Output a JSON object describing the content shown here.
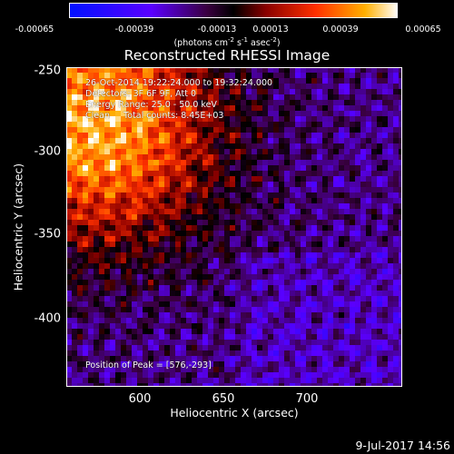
{
  "title": "Reconstructed RHESSI Image",
  "colorbar": {
    "ticks": [
      "-0.00065",
      "-0.00039",
      "-0.00013",
      "0.00013",
      "0.00039",
      "0.00065"
    ],
    "unit_parts": [
      "(photons cm",
      "-2",
      " s",
      "-1",
      " asec",
      "-2",
      ")"
    ]
  },
  "annotations": {
    "time": "26-Oct-2014 19:22:24.000 to 19:32:24.000",
    "detectors": "Detectors: 3F 6F 9F, Att 0",
    "energy": "Energy Range: 25.0 - 50.0 keV",
    "counts": "Clean     Total counts: 8.45E+03",
    "peak": "Position of Peak = [576,-293]"
  },
  "date_stamp": "9-Jul-2017 14:56",
  "chart_data": {
    "type": "heatmap",
    "title": "Reconstructed RHESSI Image",
    "xlabel": "Heliocentric X (arcsec)",
    "ylabel": "Heliocentric Y (arcsec)",
    "xlim": [
      560,
      760
    ],
    "ylim": [
      -440,
      -248
    ],
    "xticks": [
      "600",
      "650",
      "700"
    ],
    "yticks": [
      "-250",
      "-300",
      "-350",
      "-400"
    ],
    "colorbar_range": [
      -0.00065,
      0.00065
    ],
    "peak_position": [
      576,
      -293
    ]
  }
}
